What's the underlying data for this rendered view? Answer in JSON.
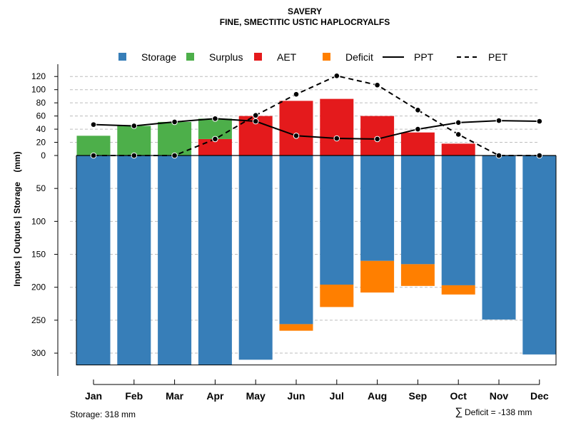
{
  "chart_data": {
    "type": "bar",
    "title": "SAVERY",
    "subtitle": "FINE, SMECTITIC USTIC HAPLOCRYALFS",
    "ylabel": "Inputs | Outputs | Storage    (mm)",
    "categories": [
      "Jan",
      "Feb",
      "Mar",
      "Apr",
      "May",
      "Jun",
      "Jul",
      "Aug",
      "Sep",
      "Oct",
      "Nov",
      "Dec"
    ],
    "upper_axis": {
      "ticks": [
        0,
        20,
        40,
        60,
        80,
        100,
        120
      ],
      "ylim": [
        0,
        120
      ]
    },
    "lower_axis": {
      "ticks": [
        0,
        50,
        100,
        150,
        200,
        250,
        300
      ],
      "ylim": [
        0,
        318
      ]
    },
    "legend": [
      {
        "label": "Storage",
        "kind": "box",
        "color": "#377eb8"
      },
      {
        "label": "Surplus",
        "kind": "box",
        "color": "#4daf4a"
      },
      {
        "label": "AET",
        "kind": "box",
        "color": "#e41a1c"
      },
      {
        "label": "Deficit",
        "kind": "box",
        "color": "#ff7f00"
      },
      {
        "label": "PPT",
        "kind": "solid",
        "color": "#000000"
      },
      {
        "label": "PET",
        "kind": "dashed",
        "color": "#000000"
      }
    ],
    "series": [
      {
        "name": "Surplus",
        "color": "#4daf4a",
        "values": [
          30,
          45,
          51,
          31,
          0,
          0,
          0,
          0,
          0,
          0,
          0,
          0
        ]
      },
      {
        "name": "AET",
        "color": "#e41a1c",
        "values": [
          0,
          0,
          0,
          25,
          60,
          83,
          86,
          60,
          35,
          18,
          0,
          0
        ]
      },
      {
        "name": "Storage",
        "color": "#377eb8",
        "values": [
          318,
          318,
          318,
          318,
          310,
          256,
          196,
          160,
          165,
          197,
          249,
          302
        ]
      },
      {
        "name": "Deficit",
        "color": "#ff7f00",
        "values": [
          0,
          0,
          0,
          0,
          0,
          10,
          34,
          48,
          33,
          14,
          0,
          0
        ]
      },
      {
        "name": "PPT",
        "color": "#000000",
        "values": [
          47,
          45,
          51,
          56,
          52,
          30,
          26,
          25,
          40,
          50,
          53,
          52
        ]
      },
      {
        "name": "PET",
        "color": "#000000",
        "values": [
          0,
          0,
          0,
          25,
          61,
          93,
          121,
          107,
          69,
          32,
          0,
          0
        ]
      }
    ],
    "footer_left": "Storage: 318 mm",
    "footer_right_symbol": "∑",
    "footer_right": "Deficit = -138 mm"
  }
}
